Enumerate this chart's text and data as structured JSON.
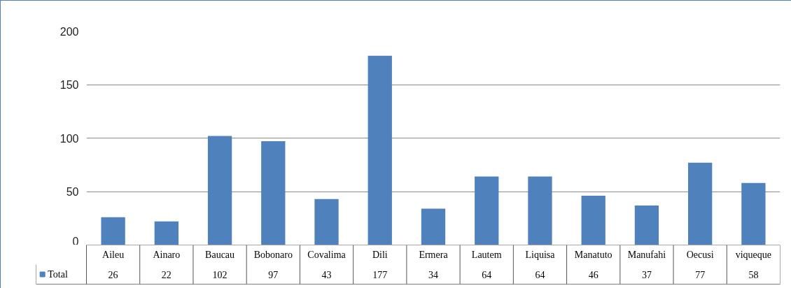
{
  "chart_data": {
    "type": "bar",
    "categories": [
      "Aileu",
      "Ainaro",
      "Baucau",
      "Bobonaro",
      "Covalima",
      "Dili",
      "Ermera",
      "Lautem",
      "Liquisa",
      "Manatuto",
      "Manufahi",
      "Oecusi",
      "viqueque"
    ],
    "series": [
      {
        "name": "Total",
        "color": "#4f81bd",
        "values": [
          26,
          22,
          102,
          97,
          43,
          177,
          34,
          64,
          64,
          46,
          37,
          77,
          58
        ]
      }
    ],
    "ylim": [
      0,
      200
    ],
    "yticks": [
      0,
      50,
      100,
      150,
      200
    ],
    "grid": "y",
    "legend": "bottom left",
    "data_labels": true
  }
}
